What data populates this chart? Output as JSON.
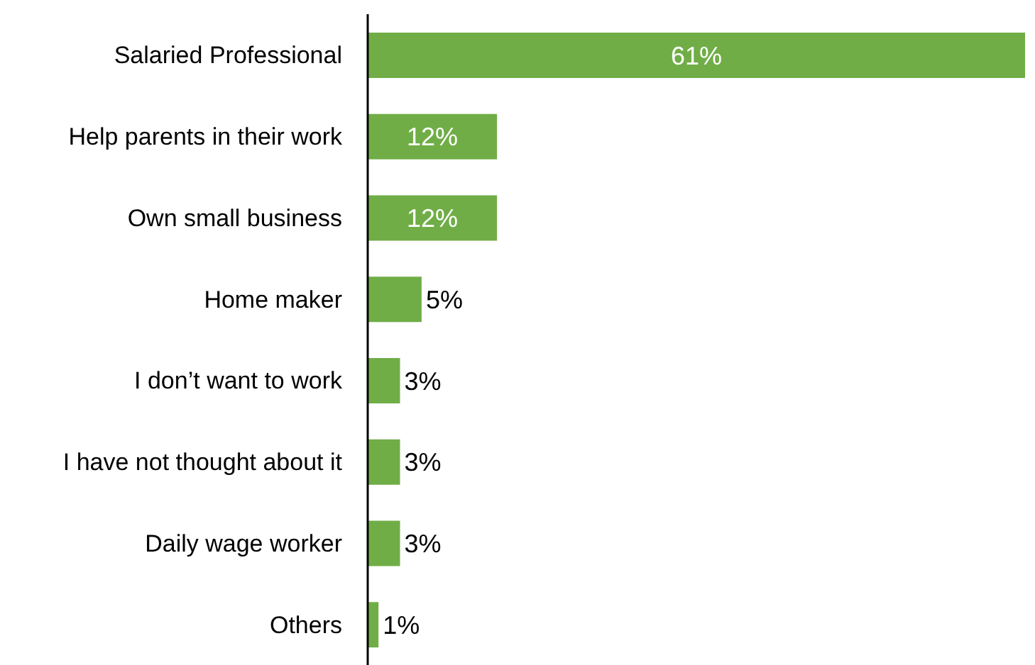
{
  "chart_data": {
    "type": "bar",
    "orientation": "horizontal",
    "categories": [
      "Salaried Professional",
      "Help parents in their work",
      "Own small business",
      "Home maker",
      "I don’t want to work",
      "I have not thought about it",
      "Daily wage worker",
      "Others"
    ],
    "values": [
      61,
      12,
      12,
      5,
      3,
      3,
      3,
      1
    ],
    "value_labels": [
      "61%",
      "12%",
      "12%",
      "5%",
      "3%",
      "3%",
      "3%",
      "1%"
    ],
    "color": "#70ad47",
    "grid": false,
    "tick_labels": "y"
  }
}
